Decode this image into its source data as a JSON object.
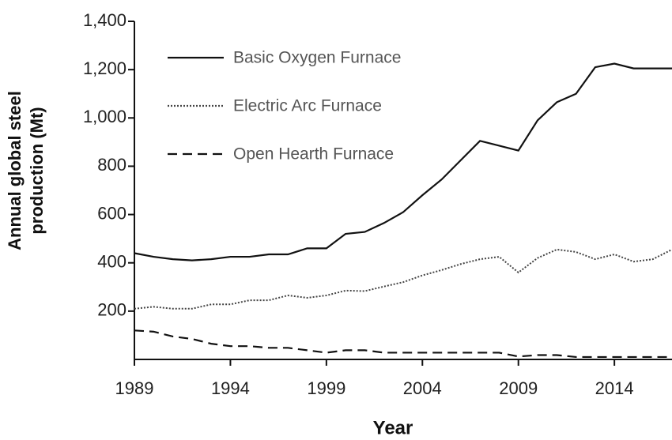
{
  "chart_data": {
    "type": "line",
    "x_label": "Year",
    "y_label": "Annual global steel production (Mt)",
    "x": [
      1989,
      1990,
      1991,
      1992,
      1993,
      1994,
      1995,
      1996,
      1997,
      1998,
      1999,
      2000,
      2001,
      2002,
      2003,
      2004,
      2005,
      2006,
      2007,
      2008,
      2009,
      2010,
      2011,
      2012,
      2013,
      2014,
      2015,
      2016,
      2017
    ],
    "series": [
      {
        "name": "Basic Oxygen Furnace",
        "color": "#111111",
        "dash": "solid",
        "values": [
          440,
          425,
          415,
          410,
          415,
          425,
          425,
          435,
          435,
          460,
          460,
          520,
          528,
          565,
          610,
          680,
          745,
          825,
          905,
          885,
          865,
          990,
          1065,
          1100,
          1210,
          1225,
          1205,
          1205,
          1205
        ]
      },
      {
        "name": "Electric Arc Furnace",
        "color": "#444444",
        "dash": "dotted",
        "values": [
          210,
          218,
          210,
          210,
          228,
          228,
          245,
          245,
          265,
          255,
          265,
          285,
          283,
          302,
          320,
          348,
          370,
          395,
          415,
          425,
          360,
          420,
          455,
          445,
          415,
          435,
          405,
          415,
          455
        ]
      },
      {
        "name": "Open Hearth Furnace",
        "color": "#111111",
        "dash": "dashed",
        "values": [
          120,
          115,
          95,
          85,
          65,
          55,
          55,
          48,
          48,
          38,
          28,
          38,
          38,
          28,
          28,
          28,
          28,
          28,
          28,
          28,
          12,
          18,
          18,
          10,
          10,
          10,
          10,
          10,
          10
        ]
      }
    ],
    "xlim": [
      1989,
      2017
    ],
    "xticks": [
      1989,
      1994,
      1999,
      2004,
      2009,
      2014
    ],
    "ylim": [
      0,
      1400
    ],
    "yticks": [
      200,
      400,
      600,
      800,
      {
        "value": 1000,
        "label": "1,000"
      },
      {
        "value": 1200,
        "label": "1,200"
      },
      {
        "value": 1400,
        "label": "1,400"
      }
    ],
    "legend": "top-left"
  }
}
